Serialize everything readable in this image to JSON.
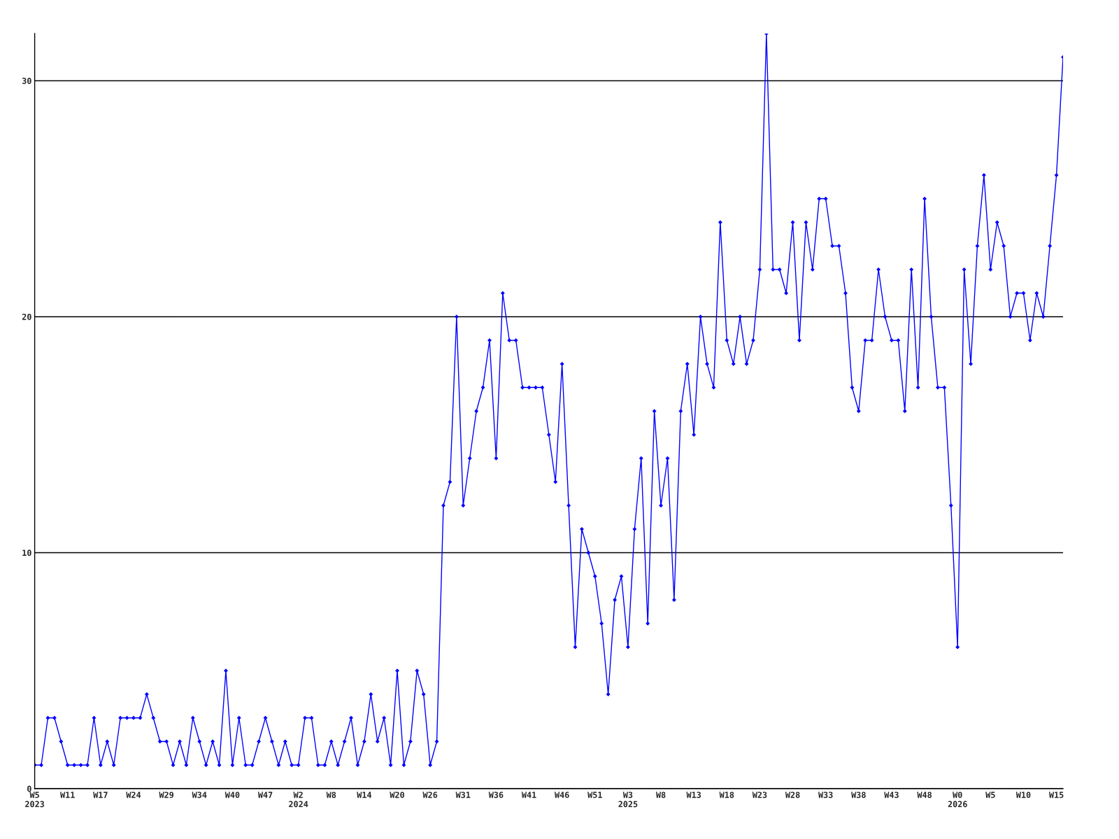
{
  "chart_data": {
    "type": "line",
    "categories": [
      "W5\n2023",
      null,
      null,
      null,
      null,
      "W11",
      null,
      null,
      null,
      null,
      "W17",
      null,
      null,
      null,
      null,
      "W24",
      null,
      null,
      null,
      null,
      "W29",
      null,
      null,
      null,
      null,
      "W34",
      null,
      null,
      null,
      null,
      "W40",
      null,
      null,
      null,
      null,
      "W47",
      null,
      null,
      null,
      null,
      "W2\n2024",
      null,
      null,
      null,
      null,
      "W8",
      null,
      null,
      null,
      null,
      "W14",
      null,
      null,
      null,
      null,
      "W20",
      null,
      null,
      null,
      null,
      "W26",
      null,
      null,
      null,
      null,
      "W31",
      null,
      null,
      null,
      null,
      "W36",
      null,
      null,
      null,
      null,
      "W41",
      null,
      null,
      null,
      null,
      "W46",
      null,
      null,
      null,
      null,
      "W51",
      null,
      null,
      null,
      null,
      "W3\n2025",
      null,
      null,
      null,
      null,
      "W8",
      null,
      null,
      null,
      null,
      "W13",
      null,
      null,
      null,
      null,
      "W18",
      null,
      null,
      null,
      null,
      "W23",
      null,
      null,
      null,
      null,
      "W28",
      null,
      null,
      null,
      null,
      "W33",
      null,
      null,
      null,
      null,
      "W38",
      null,
      null,
      null,
      null,
      "W43",
      null,
      null,
      null,
      null,
      "W48",
      null,
      null,
      null,
      null,
      "W0\n2026",
      null,
      null,
      null,
      null,
      "W5",
      null,
      null,
      null,
      null,
      "W10",
      null,
      null,
      null,
      null,
      "W15",
      null
    ],
    "series": [
      {
        "color": "#0000ff",
        "values": [
          1,
          1,
          3,
          3,
          2,
          1,
          1,
          1,
          1,
          3,
          1,
          2,
          1,
          3,
          3,
          3,
          3,
          4,
          3,
          2,
          2,
          1,
          2,
          1,
          3,
          2,
          1,
          2,
          1,
          5,
          1,
          3,
          1,
          1,
          2,
          3,
          2,
          1,
          2,
          1,
          1,
          3,
          3,
          1,
          1,
          2,
          1,
          2,
          3,
          1,
          2,
          4,
          2,
          3,
          1,
          5,
          1,
          2,
          5,
          4,
          1,
          2,
          12,
          13,
          20,
          12,
          14,
          16,
          17,
          19,
          14,
          21,
          19,
          19,
          17,
          17,
          17,
          17,
          15,
          13,
          18,
          12,
          6,
          11,
          10,
          9,
          7,
          4,
          8,
          9,
          6,
          11,
          14,
          7,
          16,
          12,
          14,
          8,
          16,
          18,
          15,
          20,
          18,
          17,
          24,
          19,
          18,
          20,
          18,
          19,
          22,
          32,
          22,
          22,
          21,
          24,
          19,
          24,
          22,
          25,
          25,
          23,
          23,
          21,
          17,
          16,
          19,
          19,
          22,
          20,
          19,
          19,
          16,
          22,
          17,
          25,
          20,
          17,
          17,
          12,
          6,
          22,
          18,
          23,
          26,
          22,
          24,
          23,
          20,
          21,
          21,
          19,
          21,
          20,
          23,
          26,
          31
        ]
      }
    ],
    "ylim": [
      0,
      32
    ],
    "yticks": [
      0,
      10,
      20,
      30
    ],
    "grid": "y",
    "marker": "diamond",
    "line_style": "solid"
  }
}
